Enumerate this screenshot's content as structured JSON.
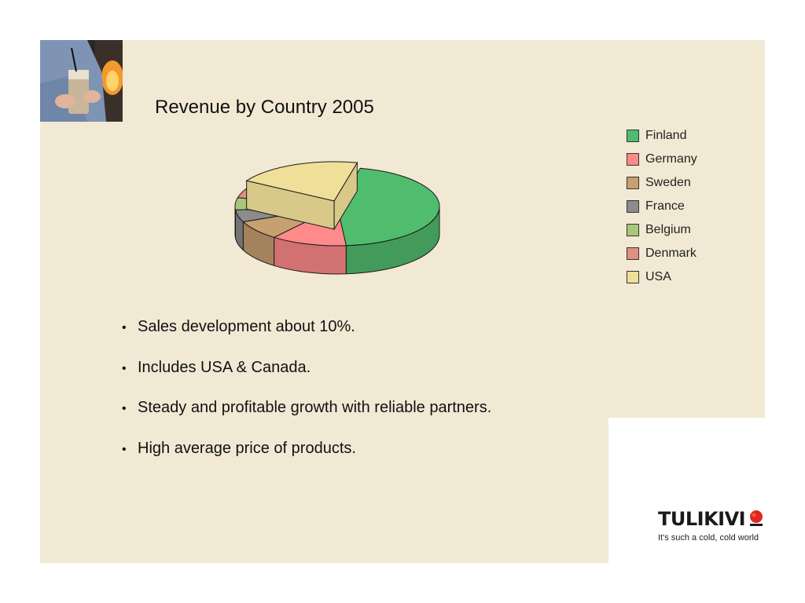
{
  "slide": {
    "title": "Revenue by Country 2005",
    "bullets": [
      "Sales development about 10%.",
      "Includes USA & Canada.",
      "Steady and profitable growth with reliable partners.",
      "High average price of products."
    ],
    "brand": {
      "name": "TULIKIVI",
      "tagline": "It's such a cold, cold world"
    }
  },
  "chart_data": {
    "type": "pie",
    "title": "Revenue by Country 2005",
    "three_d": true,
    "exploded_slice": "USA",
    "legend_position": "right",
    "categories": [
      "Finland",
      "Germany",
      "Sweden",
      "France",
      "Belgium",
      "Denmark",
      "USA"
    ],
    "values": [
      45,
      12,
      8,
      5,
      5,
      5,
      20
    ],
    "colors": [
      "#50bd6e",
      "#ff8a8a",
      "#c8a070",
      "#8c8c8c",
      "#a8c878",
      "#e09080",
      "#f0df98"
    ]
  }
}
